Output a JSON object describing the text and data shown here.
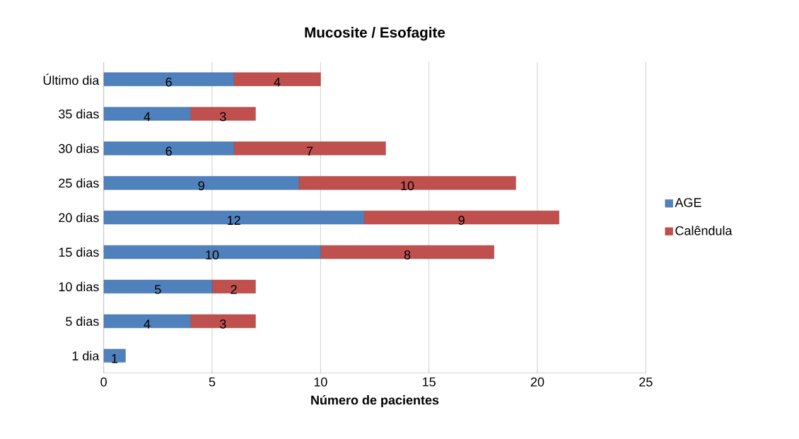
{
  "chart_data": {
    "type": "bar",
    "orientation": "horizontal",
    "stacked": true,
    "title": "Mucosite / Esofagite",
    "xlabel": "Número de pacientes",
    "categories": [
      "Último dia",
      "35 dias",
      "30 dias",
      "25 dias",
      "20 dias",
      "15 dias",
      "10 dias",
      "5 dias",
      "1 dia"
    ],
    "series": [
      {
        "name": "AGE",
        "color": "#4f81bd",
        "values": [
          6,
          4,
          6,
          9,
          12,
          10,
          5,
          4,
          1
        ]
      },
      {
        "name": "Calêndula",
        "color": "#c0504d",
        "values": [
          4,
          3,
          7,
          10,
          9,
          8,
          2,
          3,
          null
        ]
      }
    ],
    "xlim": [
      0,
      25
    ],
    "xticks": [
      0,
      5,
      10,
      15,
      20,
      25
    ],
    "grid": "x",
    "legend": "right",
    "data_labels": true
  }
}
